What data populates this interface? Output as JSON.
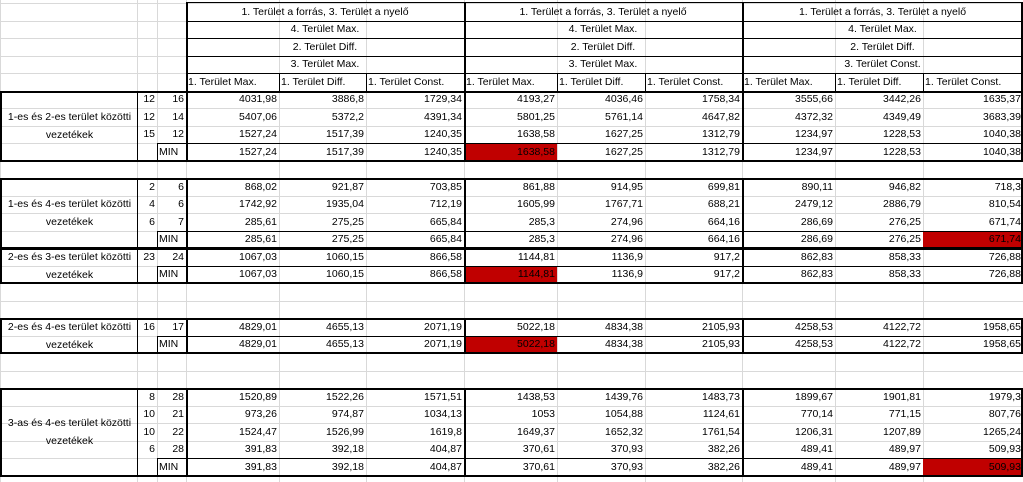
{
  "header": {
    "top": [
      "1. Terület a forrás, 3. Terület a nyelő",
      "1. Terület a forrás, 3. Terület a nyelő",
      "1. Terület a forrás, 3. Terület a nyelő"
    ],
    "row2": [
      "4. Terület Max.",
      "4. Terület Max.",
      "4. Terület Max."
    ],
    "row3": [
      "2. Terület Diff.",
      "2. Terület Diff.",
      "2. Terület Diff."
    ],
    "row4": [
      "3. Terület Max.",
      "3. Terület Max.",
      "3. Terület Const."
    ],
    "sub": [
      "1. Terület Max.",
      "1. Terület Diff.",
      "1. Terület Const.",
      "1. Terület Max.",
      "1. Terület Diff.",
      "1. Terület Const.",
      "1. Terület Max.",
      "1. Terület Diff.",
      "1. Terület Const."
    ]
  },
  "min_label": "MIN",
  "highlight_color": "#c00000",
  "groups": [
    {
      "label": "1-es és 2-es terület közötti vezetékek",
      "rows": [
        {
          "a": "12",
          "b": "16",
          "v": [
            "4031,98",
            "3886,8",
            "1729,34",
            "4193,27",
            "4036,46",
            "1758,34",
            "3555,66",
            "3442,26",
            "1635,37"
          ]
        },
        {
          "a": "12",
          "b": "14",
          "v": [
            "5407,06",
            "5372,2",
            "4391,34",
            "5801,25",
            "5761,14",
            "4647,82",
            "4372,32",
            "4349,49",
            "3683,39"
          ]
        },
        {
          "a": "15",
          "b": "12",
          "v": [
            "1527,24",
            "1517,39",
            "1240,35",
            "1638,58",
            "1627,25",
            "1312,79",
            "1234,97",
            "1228,53",
            "1040,38"
          ]
        }
      ],
      "min": [
        "1527,24",
        "1517,39",
        "1240,35",
        "1638,58",
        "1627,25",
        "1312,79",
        "1234,97",
        "1228,53",
        "1040,38"
      ],
      "highlight": [
        3
      ]
    },
    {
      "label": "1-es és 4-es terület közötti vezetékek",
      "rows": [
        {
          "a": "2",
          "b": "6",
          "v": [
            "868,02",
            "921,87",
            "703,85",
            "861,88",
            "914,95",
            "699,81",
            "890,11",
            "946,82",
            "718,3"
          ]
        },
        {
          "a": "4",
          "b": "6",
          "v": [
            "1742,92",
            "1935,04",
            "712,19",
            "1605,99",
            "1767,71",
            "688,21",
            "2479,12",
            "2886,79",
            "810,54"
          ]
        },
        {
          "a": "6",
          "b": "7",
          "v": [
            "285,61",
            "275,25",
            "665,84",
            "285,3",
            "274,96",
            "664,16",
            "286,69",
            "276,25",
            "671,74"
          ]
        }
      ],
      "min": [
        "285,61",
        "275,25",
        "665,84",
        "285,3",
        "274,96",
        "664,16",
        "286,69",
        "276,25",
        "671,74"
      ],
      "highlight": [
        8
      ]
    },
    {
      "label": "2-es és 3-es terület közötti vezetékek",
      "rows": [
        {
          "a": "23",
          "b": "24",
          "v": [
            "1067,03",
            "1060,15",
            "866,58",
            "1144,81",
            "1136,9",
            "917,2",
            "862,83",
            "858,33",
            "726,88"
          ]
        }
      ],
      "min": [
        "1067,03",
        "1060,15",
        "866,58",
        "1144,81",
        "1136,9",
        "917,2",
        "862,83",
        "858,33",
        "726,88"
      ],
      "highlight": [
        3
      ]
    },
    {
      "label": "2-es és 4-es terület közötti vezetékek",
      "rows": [
        {
          "a": "16",
          "b": "17",
          "v": [
            "4829,01",
            "4655,13",
            "2071,19",
            "5022,18",
            "4834,38",
            "2105,93",
            "4258,53",
            "4122,72",
            "1958,65"
          ]
        }
      ],
      "min": [
        "4829,01",
        "4655,13",
        "2071,19",
        "5022,18",
        "4834,38",
        "2105,93",
        "4258,53",
        "4122,72",
        "1958,65"
      ],
      "highlight": [
        3
      ]
    },
    {
      "label": "3-as és 4-es terület közötti vezetékek",
      "rows": [
        {
          "a": "8",
          "b": "28",
          "v": [
            "1520,89",
            "1522,26",
            "1571,51",
            "1438,53",
            "1439,76",
            "1483,73",
            "1899,67",
            "1901,81",
            "1979,3"
          ]
        },
        {
          "a": "10",
          "b": "21",
          "v": [
            "973,26",
            "974,87",
            "1034,13",
            "1053",
            "1054,88",
            "1124,61",
            "770,14",
            "771,15",
            "807,76"
          ]
        },
        {
          "a": "10",
          "b": "22",
          "v": [
            "1524,47",
            "1526,99",
            "1619,8",
            "1649,37",
            "1652,32",
            "1761,54",
            "1206,31",
            "1207,89",
            "1265,24"
          ]
        },
        {
          "a": "6",
          "b": "28",
          "v": [
            "391,83",
            "392,18",
            "404,87",
            "370,61",
            "370,93",
            "382,26",
            "489,41",
            "489,97",
            "509,93"
          ]
        }
      ],
      "min": [
        "391,83",
        "392,18",
        "404,87",
        "370,61",
        "370,93",
        "382,26",
        "489,41",
        "489,97",
        "509,93"
      ],
      "highlight": [
        8
      ]
    }
  ]
}
